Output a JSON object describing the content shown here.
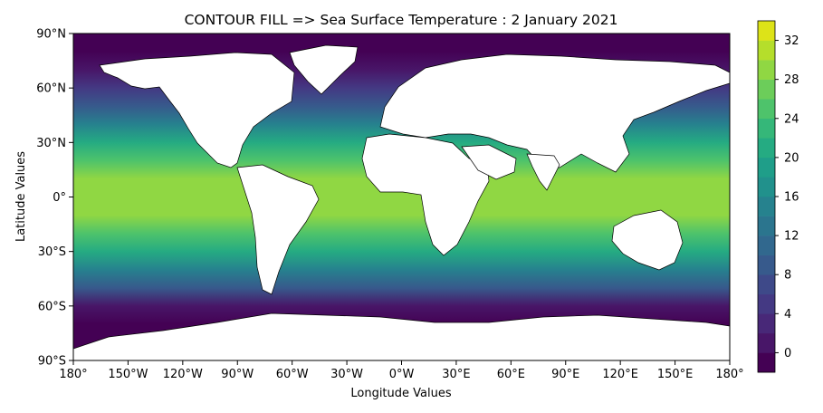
{
  "chart_data": {
    "type": "heatmap",
    "title": "CONTOUR FILL => Sea Surface Temperature : 2 January 2021",
    "xlabel": "Longitude Values",
    "ylabel": "Latitude Values",
    "x_range": [
      -180,
      180
    ],
    "y_range": [
      -90,
      90
    ],
    "x_ticks": [
      {
        "value": -180,
        "label": "180°"
      },
      {
        "value": -150,
        "label": "150°W"
      },
      {
        "value": -120,
        "label": "120°W"
      },
      {
        "value": -90,
        "label": "90°W"
      },
      {
        "value": -60,
        "label": "60°W"
      },
      {
        "value": -30,
        "label": "30°W"
      },
      {
        "value": 0,
        "label": "0°W"
      },
      {
        "value": 30,
        "label": "30°E"
      },
      {
        "value": 60,
        "label": "60°E"
      },
      {
        "value": 90,
        "label": "90°E"
      },
      {
        "value": 120,
        "label": "120°E"
      },
      {
        "value": 150,
        "label": "150°E"
      },
      {
        "value": 180,
        "label": "180°"
      }
    ],
    "y_ticks": [
      {
        "value": 90,
        "label": "90°N"
      },
      {
        "value": 60,
        "label": "60°N"
      },
      {
        "value": 30,
        "label": "30°N"
      },
      {
        "value": 0,
        "label": "0°"
      },
      {
        "value": -30,
        "label": "30°S"
      },
      {
        "value": -60,
        "label": "60°S"
      },
      {
        "value": -90,
        "label": "90°S"
      }
    ],
    "colorbar": {
      "min": -2,
      "max": 34,
      "step": 2,
      "ticks": [
        0,
        4,
        8,
        12,
        16,
        20,
        24,
        28,
        32
      ],
      "colormap": [
        "#440154",
        "#481668",
        "#482878",
        "#443983",
        "#3e4989",
        "#375a8c",
        "#31688e",
        "#2b758e",
        "#26828e",
        "#21918c",
        "#1f9e89",
        "#25ab82",
        "#35b779",
        "#4ec36b",
        "#6ccd5a",
        "#90d743",
        "#b5de2b",
        "#dde318"
      ]
    },
    "sst_by_latitude": [
      {
        "lat": 80,
        "value": -1.5
      },
      {
        "lat": 70,
        "value": 1
      },
      {
        "lat": 60,
        "value": 5
      },
      {
        "lat": 50,
        "value": 9
      },
      {
        "lat": 40,
        "value": 15
      },
      {
        "lat": 30,
        "value": 20
      },
      {
        "lat": 20,
        "value": 25
      },
      {
        "lat": 10,
        "value": 28
      },
      {
        "lat": 0,
        "value": 28
      },
      {
        "lat": -10,
        "value": 28
      },
      {
        "lat": -20,
        "value": 25
      },
      {
        "lat": -30,
        "value": 21
      },
      {
        "lat": -40,
        "value": 15
      },
      {
        "lat": -50,
        "value": 8
      },
      {
        "lat": -60,
        "value": 1
      },
      {
        "lat": -70,
        "value": -1.5
      }
    ],
    "grid": false,
    "legend": "right"
  }
}
